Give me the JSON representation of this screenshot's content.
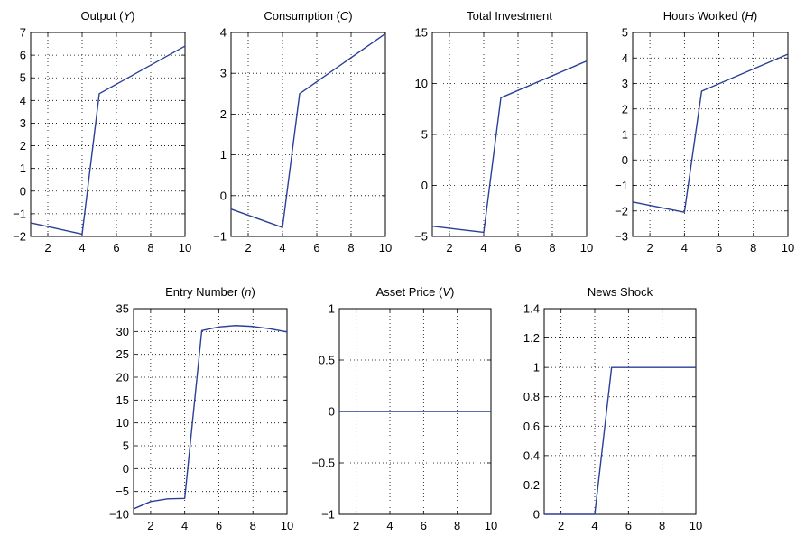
{
  "colors": {
    "line": "#2a3f97",
    "axes": "#000000",
    "background": "#ffffff"
  },
  "chart_data": [
    {
      "type": "line",
      "title": "Output (Y)",
      "title_parts": [
        {
          "text": "Output ("
        },
        {
          "text": "Y",
          "italic": true
        },
        {
          "text": ")"
        }
      ],
      "x": [
        1,
        4,
        5,
        10
      ],
      "y": [
        -1.4,
        -1.9,
        4.3,
        6.4
      ],
      "xlim": [
        1,
        10
      ],
      "ylim": [
        -2,
        7
      ],
      "xticks": [
        2,
        4,
        6,
        8,
        10
      ],
      "yticks": [
        -2,
        -1,
        0,
        1,
        2,
        3,
        4,
        5,
        6,
        7
      ],
      "ytick_labels": [
        "−2",
        "−1",
        "0",
        "1",
        "2",
        "3",
        "4",
        "5",
        "6",
        "7"
      ],
      "grid": true
    },
    {
      "type": "line",
      "title": "Consumption (C)",
      "title_parts": [
        {
          "text": "Consumption ("
        },
        {
          "text": "C",
          "italic": true
        },
        {
          "text": ")"
        }
      ],
      "x": [
        1,
        4,
        5,
        10
      ],
      "y": [
        -0.33,
        -0.78,
        2.5,
        3.97
      ],
      "xlim": [
        1,
        10
      ],
      "ylim": [
        -1,
        4
      ],
      "xticks": [
        2,
        4,
        6,
        8,
        10
      ],
      "yticks": [
        -1,
        0,
        1,
        2,
        3,
        4
      ],
      "ytick_labels": [
        "−1",
        "0",
        "1",
        "2",
        "3",
        "4"
      ],
      "grid": true
    },
    {
      "type": "line",
      "title": "Total Investment",
      "title_parts": [
        {
          "text": "Total Investment"
        }
      ],
      "x": [
        1,
        4,
        5,
        10
      ],
      "y": [
        -4.0,
        -4.6,
        8.6,
        12.2
      ],
      "xlim": [
        1,
        10
      ],
      "ylim": [
        -5,
        15
      ],
      "xticks": [
        2,
        4,
        6,
        8,
        10
      ],
      "yticks": [
        -5,
        0,
        5,
        10,
        15
      ],
      "ytick_labels": [
        "−5",
        "0",
        "5",
        "10",
        "15"
      ],
      "grid": true
    },
    {
      "type": "line",
      "title": "Hours Worked (H)",
      "title_parts": [
        {
          "text": "Hours Worked ("
        },
        {
          "text": "H",
          "italic": true
        },
        {
          "text": ")"
        }
      ],
      "x": [
        1,
        4,
        5,
        10
      ],
      "y": [
        -1.65,
        -2.05,
        2.7,
        4.15
      ],
      "xlim": [
        1,
        10
      ],
      "ylim": [
        -3,
        5
      ],
      "xticks": [
        2,
        4,
        6,
        8,
        10
      ],
      "yticks": [
        -3,
        -2,
        -1,
        0,
        1,
        2,
        3,
        4,
        5
      ],
      "ytick_labels": [
        "−3",
        "−2",
        "−1",
        "0",
        "1",
        "2",
        "3",
        "4",
        "5"
      ],
      "grid": true
    },
    {
      "type": "line",
      "title": "Entry Number (n)",
      "title_parts": [
        {
          "text": "Entry Number ("
        },
        {
          "text": "n",
          "italic": true
        },
        {
          "text": ")"
        }
      ],
      "x": [
        1,
        2,
        3,
        4,
        5,
        6,
        7,
        8,
        9,
        10
      ],
      "y": [
        -8.8,
        -7.2,
        -6.6,
        -6.5,
        30.2,
        31.0,
        31.3,
        31.1,
        30.6,
        29.9
      ],
      "xlim": [
        1,
        10
      ],
      "ylim": [
        -10,
        35
      ],
      "xticks": [
        2,
        4,
        6,
        8,
        10
      ],
      "yticks": [
        -10,
        -5,
        0,
        5,
        10,
        15,
        20,
        25,
        30,
        35
      ],
      "ytick_labels": [
        "−10",
        "−5",
        "0",
        "5",
        "10",
        "15",
        "20",
        "25",
        "30",
        "35"
      ],
      "grid": true
    },
    {
      "type": "line",
      "title": "Asset Price (V)",
      "title_parts": [
        {
          "text": "Asset Price ("
        },
        {
          "text": "V",
          "italic": true
        },
        {
          "text": ")"
        }
      ],
      "x": [
        1,
        10
      ],
      "y": [
        0,
        0
      ],
      "xlim": [
        1,
        10
      ],
      "ylim": [
        -1,
        1
      ],
      "xticks": [
        2,
        4,
        6,
        8,
        10
      ],
      "yticks": [
        -1,
        -0.5,
        0,
        0.5,
        1
      ],
      "ytick_labels": [
        "−1",
        "−0.5",
        "0",
        "0.5",
        "1"
      ],
      "grid": true
    },
    {
      "type": "line",
      "title": "News Shock",
      "title_parts": [
        {
          "text": "News Shock"
        }
      ],
      "x": [
        1,
        4,
        5,
        10
      ],
      "y": [
        0,
        0,
        1,
        1
      ],
      "xlim": [
        1,
        10
      ],
      "ylim": [
        0,
        1.4
      ],
      "xticks": [
        2,
        4,
        6,
        8,
        10
      ],
      "yticks": [
        0,
        0.2,
        0.4,
        0.6,
        0.8,
        1,
        1.2,
        1.4
      ],
      "ytick_labels": [
        "0",
        "0.2",
        "0.4",
        "0.6",
        "0.8",
        "1",
        "1.2",
        "1.4"
      ],
      "grid": true
    }
  ]
}
